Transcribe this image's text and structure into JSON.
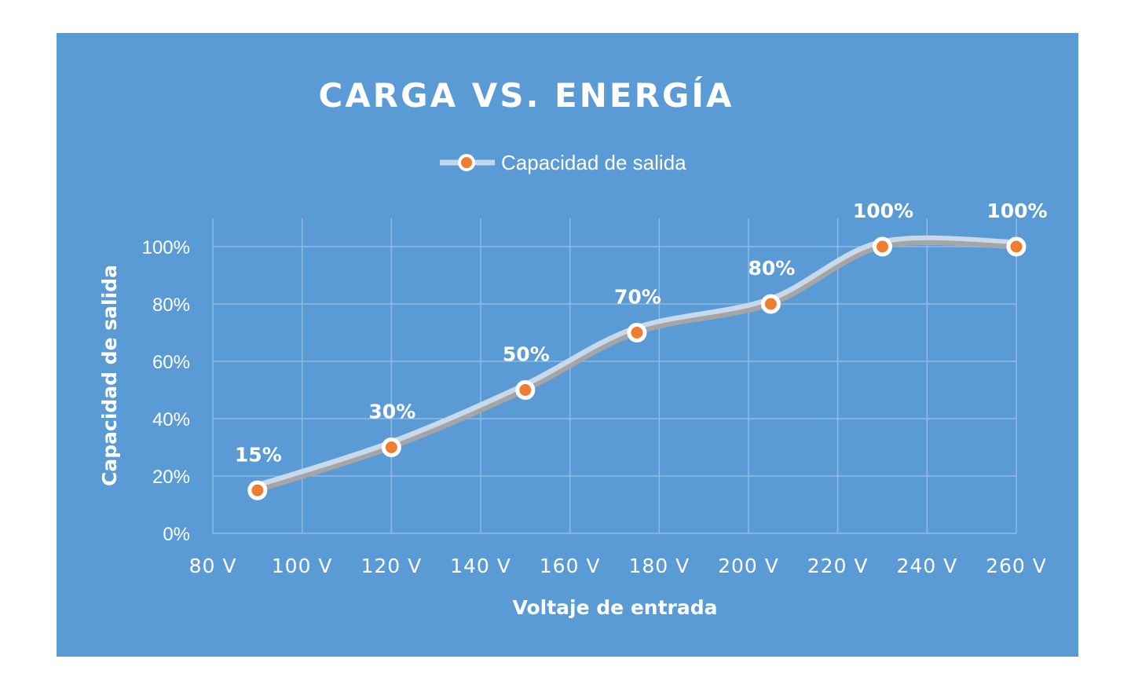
{
  "chart_data": {
    "type": "line",
    "title": "CARGA  VS. ENERGÍA",
    "xlabel": "Voltaje de entrada",
    "ylabel": "Capacidad de salida",
    "x_unit": "V",
    "xlim": [
      80,
      260
    ],
    "ylim": [
      0,
      100
    ],
    "x_ticks": [
      80,
      100,
      120,
      140,
      160,
      180,
      200,
      220,
      240,
      260
    ],
    "x_tick_labels": [
      "80 V",
      "100 V",
      "120 V",
      "140 V",
      "160 V",
      "180 V",
      "200 V",
      "220 V",
      "240 V",
      "260 V"
    ],
    "y_ticks": [
      0,
      20,
      40,
      60,
      80,
      100
    ],
    "y_tick_labels": [
      "0%",
      "20%",
      "40%",
      "60%",
      "80%",
      "100%"
    ],
    "legend_position": "top-center",
    "grid": true,
    "series": [
      {
        "name": "Capacidad de salida",
        "x": [
          90,
          120,
          150,
          175,
          205,
          230,
          260
        ],
        "y": [
          15,
          30,
          50,
          70,
          80,
          100,
          100
        ],
        "data_labels": [
          "15%",
          "30%",
          "50%",
          "70%",
          "80%",
          "100%",
          "100%"
        ]
      }
    ],
    "colors": {
      "background": "#5b9bd5",
      "line": "#a5a5a5",
      "marker_fill": "#ed7d31",
      "marker_ring": "#ffffff"
    }
  }
}
